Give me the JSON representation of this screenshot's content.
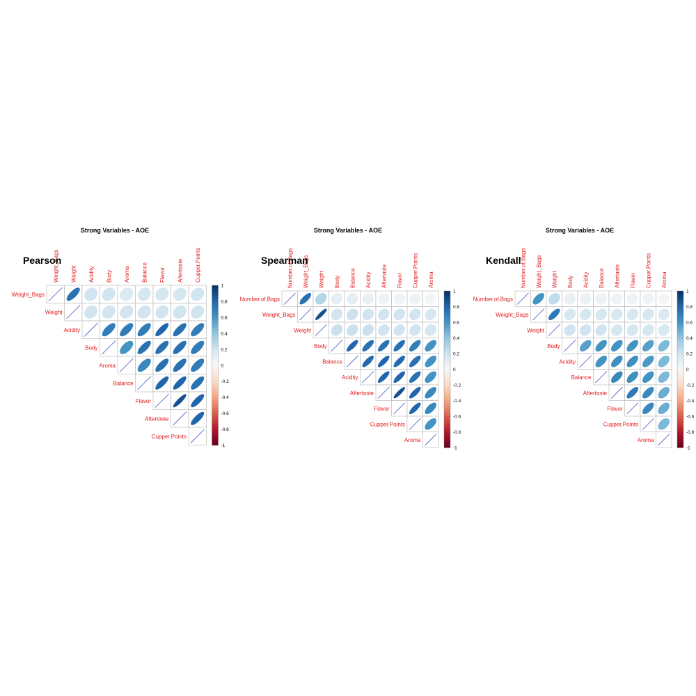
{
  "colors": {
    "label": "#e31a1c",
    "grid": "#bdbdbd",
    "diag_line": "#3b4cc0"
  },
  "colorbar_ticks": [
    "1",
    "0.8",
    "0.6",
    "0.4",
    "0.2",
    "0",
    "-0.2",
    "-0.4",
    "-0.6",
    "-0.8",
    "-1"
  ],
  "chart_data": [
    {
      "type": "heatmap",
      "method": "Pearson",
      "title": "Strong Variables - AOE",
      "variables": [
        "Weight_Bags",
        "Weight",
        "Acidity",
        "Body",
        "Aroma",
        "Balance",
        "Flavor",
        "Aftertaste",
        "Cupper.Points"
      ],
      "matrix": [
        [
          1,
          0.75,
          0.2,
          0.2,
          0.15,
          0.18,
          0.18,
          0.18,
          0.2
        ],
        [
          0.75,
          1,
          0.2,
          0.2,
          0.2,
          0.2,
          0.2,
          0.2,
          0.2
        ],
        [
          0.2,
          0.2,
          1,
          0.7,
          0.7,
          0.7,
          0.8,
          0.75,
          0.7
        ],
        [
          0.2,
          0.2,
          0.7,
          1,
          0.6,
          0.75,
          0.75,
          0.75,
          0.7
        ],
        [
          0.15,
          0.2,
          0.7,
          0.6,
          1,
          0.65,
          0.75,
          0.75,
          0.7
        ],
        [
          0.18,
          0.2,
          0.7,
          0.75,
          0.65,
          1,
          0.8,
          0.8,
          0.75
        ],
        [
          0.18,
          0.2,
          0.8,
          0.75,
          0.75,
          0.8,
          1,
          0.88,
          0.8
        ],
        [
          0.18,
          0.2,
          0.75,
          0.75,
          0.75,
          0.8,
          0.88,
          1,
          0.8
        ],
        [
          0.2,
          0.2,
          0.7,
          0.7,
          0.7,
          0.75,
          0.8,
          0.8,
          1
        ]
      ],
      "colorbar": [
        -1,
        1
      ]
    },
    {
      "type": "heatmap",
      "method": "Spearman",
      "title": "Strong Variables - AOE",
      "variables": [
        "Number.of.Bags",
        "Weight_Bags",
        "Weight",
        "Body",
        "Balance",
        "Acidity",
        "Aftertaste",
        "Flavor",
        "Cupper.Points",
        "Aroma"
      ],
      "matrix": [
        [
          1,
          0.75,
          0.3,
          0.1,
          0.1,
          0.08,
          0.05,
          0.05,
          0.05,
          0.02
        ],
        [
          0.75,
          1,
          0.88,
          0.2,
          0.22,
          0.2,
          0.2,
          0.2,
          0.2,
          0.18
        ],
        [
          0.3,
          0.88,
          1,
          0.22,
          0.22,
          0.22,
          0.2,
          0.2,
          0.2,
          0.18
        ],
        [
          0.1,
          0.2,
          0.22,
          1,
          0.8,
          0.75,
          0.75,
          0.75,
          0.7,
          0.6
        ],
        [
          0.1,
          0.22,
          0.22,
          0.8,
          1,
          0.78,
          0.8,
          0.78,
          0.75,
          0.6
        ],
        [
          0.08,
          0.2,
          0.22,
          0.75,
          0.78,
          1,
          0.8,
          0.8,
          0.75,
          0.6
        ],
        [
          0.05,
          0.2,
          0.2,
          0.75,
          0.8,
          0.8,
          1,
          0.88,
          0.8,
          0.65
        ],
        [
          0.05,
          0.2,
          0.2,
          0.75,
          0.78,
          0.8,
          0.88,
          1,
          0.8,
          0.65
        ],
        [
          0.05,
          0.2,
          0.2,
          0.7,
          0.75,
          0.75,
          0.8,
          0.8,
          1,
          0.6
        ],
        [
          0.02,
          0.18,
          0.18,
          0.6,
          0.6,
          0.6,
          0.65,
          0.65,
          0.6,
          1
        ]
      ],
      "colorbar": [
        -1,
        1
      ]
    },
    {
      "type": "heatmap",
      "method": "Kendall",
      "title": "Strong Variables - AOE",
      "variables": [
        "Number.of.Bags",
        "Weight_Bags",
        "Weight",
        "Body",
        "Acidity",
        "Balance",
        "Aftertaste",
        "Flavor",
        "Cupper.Points",
        "Aroma"
      ],
      "matrix": [
        [
          1,
          0.6,
          0.25,
          0.08,
          0.07,
          0.06,
          0.04,
          0.04,
          0.04,
          0.02
        ],
        [
          0.6,
          1,
          0.72,
          0.18,
          0.18,
          0.18,
          0.17,
          0.17,
          0.17,
          0.15
        ],
        [
          0.25,
          0.72,
          1,
          0.2,
          0.2,
          0.2,
          0.18,
          0.18,
          0.18,
          0.16
        ],
        [
          0.08,
          0.18,
          0.2,
          1,
          0.55,
          0.6,
          0.6,
          0.6,
          0.55,
          0.45
        ],
        [
          0.07,
          0.18,
          0.2,
          0.55,
          1,
          0.6,
          0.62,
          0.62,
          0.58,
          0.45
        ],
        [
          0.06,
          0.18,
          0.2,
          0.6,
          0.6,
          1,
          0.65,
          0.62,
          0.6,
          0.45
        ],
        [
          0.04,
          0.17,
          0.18,
          0.6,
          0.62,
          0.65,
          1,
          0.72,
          0.65,
          0.5
        ],
        [
          0.04,
          0.17,
          0.18,
          0.6,
          0.62,
          0.62,
          0.72,
          1,
          0.65,
          0.5
        ],
        [
          0.04,
          0.17,
          0.18,
          0.55,
          0.58,
          0.6,
          0.65,
          0.65,
          1,
          0.45
        ],
        [
          0.02,
          0.15,
          0.16,
          0.45,
          0.45,
          0.45,
          0.5,
          0.5,
          0.45,
          1
        ]
      ],
      "colorbar": [
        -1,
        1
      ]
    }
  ]
}
